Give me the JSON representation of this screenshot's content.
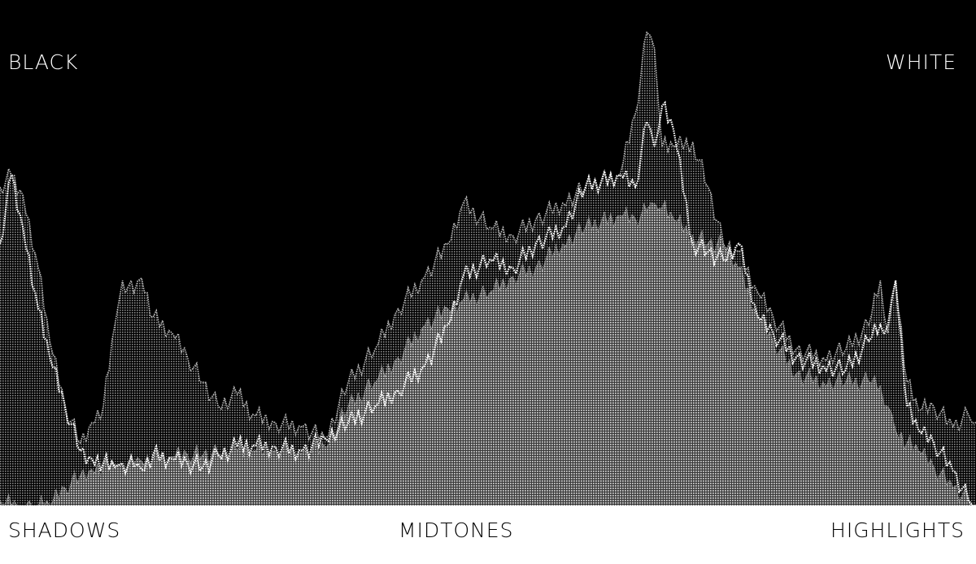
{
  "labels": {
    "top_left": "BLACK",
    "top_right": "WHITE",
    "bottom_left": "SHADOWS",
    "bottom_center": "MIDTONES",
    "bottom_right": "HIGHLIGHTS"
  },
  "colors": {
    "background": "#000000",
    "band": "#ffffff",
    "series_a": "#b8b8b8",
    "series_b": "#ffffff",
    "series_c": "#9a9a9a"
  },
  "chart_data": {
    "type": "area",
    "xlim": [
      0,
      255
    ],
    "ylim": [
      0,
      100
    ],
    "grid": false,
    "x": [
      0,
      3,
      6,
      10,
      13,
      17,
      21,
      24,
      27,
      30,
      32,
      35,
      37,
      40,
      45,
      49,
      53,
      57,
      62,
      66,
      72,
      79,
      85,
      91,
      98,
      104,
      111,
      117,
      121,
      128,
      134,
      140,
      147,
      153,
      162,
      166,
      169,
      171,
      173,
      176,
      181,
      185,
      189,
      193,
      198,
      202,
      208,
      215,
      221,
      227,
      230,
      232,
      234,
      237,
      240,
      244,
      249,
      253,
      255
    ],
    "series": [
      {
        "values": [
          63,
          65.4,
          61.4,
          47,
          32.5,
          19.6,
          12.4,
          16.4,
          19.6,
          35.7,
          44.5,
          42.1,
          45,
          37.3,
          34.1,
          29.3,
          24.4,
          19.6,
          22,
          18,
          16.4,
          15.6,
          13.2,
          24.4,
          30.9,
          38.9,
          45.3,
          51.8,
          59.8,
          55,
          53.4,
          56.6,
          59.8,
          63,
          65.4,
          77.5,
          93.6,
          90.4,
          71,
          71,
          71.9,
          63,
          51.8,
          50.2,
          42.1,
          37.3,
          30.9,
          29.3,
          30.9,
          35.7,
          44.5,
          34.1,
          44.5,
          24.4,
          18.8,
          19.6,
          15.6,
          18,
          16.4
        ]
      },
      {
        "values": [
          51.8,
          65.4,
          55,
          38.9,
          29.3,
          19.6,
          10.8,
          9.2,
          8.4,
          7.6,
          8.4,
          7.6,
          7.1,
          10,
          9.2,
          8.4,
          7.6,
          10,
          11.6,
          11.9,
          11.6,
          10.8,
          13.2,
          16.4,
          19.6,
          22.8,
          27.7,
          35.7,
          45.3,
          48.6,
          47,
          51.8,
          55,
          63,
          65.4,
          63,
          75.9,
          71,
          79.1,
          74.3,
          51.8,
          50.2,
          48.6,
          51.8,
          37.3,
          34.1,
          29.3,
          27.7,
          26.8,
          32.5,
          35.7,
          35.7,
          44.5,
          19.6,
          14.8,
          12.4,
          6.8,
          1.1,
          0
        ]
      },
      {
        "values": [
          1.1,
          0,
          0,
          0,
          0,
          3.5,
          5.9,
          7.1,
          7.6,
          8,
          8,
          8.4,
          8.7,
          9.2,
          9.6,
          10,
          10,
          10.3,
          10.6,
          10.8,
          10.8,
          10.3,
          11.6,
          19.6,
          24.4,
          29.3,
          35.7,
          38.9,
          40.5,
          42.1,
          45.3,
          47,
          51.8,
          55,
          57.4,
          56.6,
          58.2,
          59.8,
          59,
          56.6,
          53.4,
          51.8,
          51.8,
          47,
          37.3,
          32.5,
          26,
          24.4,
          24.4,
          24.4,
          23.6,
          19.6,
          14.8,
          12.4,
          10.8,
          7.6,
          3.5,
          1.1,
          0
        ]
      }
    ]
  }
}
